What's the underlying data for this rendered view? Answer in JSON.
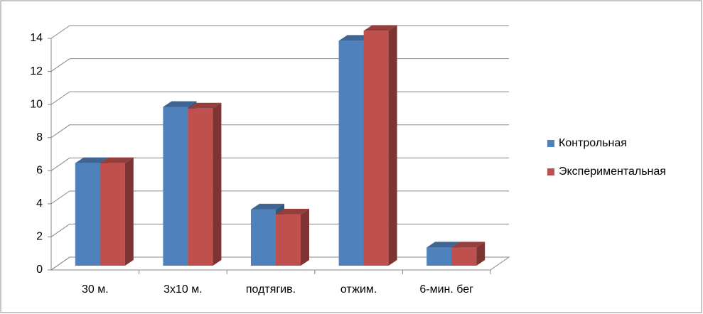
{
  "chart_data": {
    "type": "bar3d",
    "categories": [
      "30 м.",
      "3x10 м.",
      "подтягив.",
      "отжим.",
      "6-мин. бег"
    ],
    "series": [
      {
        "name": "Контрольная",
        "color": "#4f81bd",
        "values": [
          6.2,
          9.6,
          3.4,
          13.6,
          1.1
        ]
      },
      {
        "name": "Экспериментальная",
        "color": "#c0504d",
        "values": [
          6.2,
          9.5,
          3.1,
          14.2,
          1.1
        ]
      }
    ],
    "ylim": [
      0,
      14
    ],
    "yticks": [
      0,
      2,
      4,
      6,
      8,
      10,
      12,
      14
    ],
    "grid": true,
    "legend": "right"
  }
}
